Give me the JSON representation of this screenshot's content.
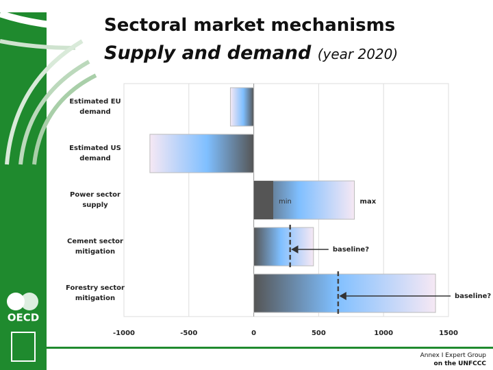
{
  "chart_data": {
    "type": "hbar",
    "title": "Sectoral market mechanisms",
    "subtitle": "Supply and demand",
    "subtitle_note": "(year 2020)",
    "categories": [
      "Estimated EU demand",
      "Estimated US demand",
      "Power sector supply",
      "Cement sector mitigation",
      "Forestry sector mitigation"
    ],
    "values": [
      -180,
      -800,
      775,
      460,
      1400
    ],
    "annotations": [
      null,
      null,
      {
        "min_label": "min",
        "min": 150,
        "max_label": "max"
      },
      {
        "baseline_label": "baseline?",
        "baseline": 280
      },
      {
        "baseline_label": "baseline?",
        "baseline": 650
      }
    ],
    "xlim": [
      -1000,
      1500
    ],
    "xticks": [
      -1000,
      -500,
      0,
      500,
      1000,
      1500
    ],
    "grid": true
  },
  "logo": "OECD",
  "footer": [
    "Annex I Expert Group",
    "on the UNFCCC"
  ]
}
